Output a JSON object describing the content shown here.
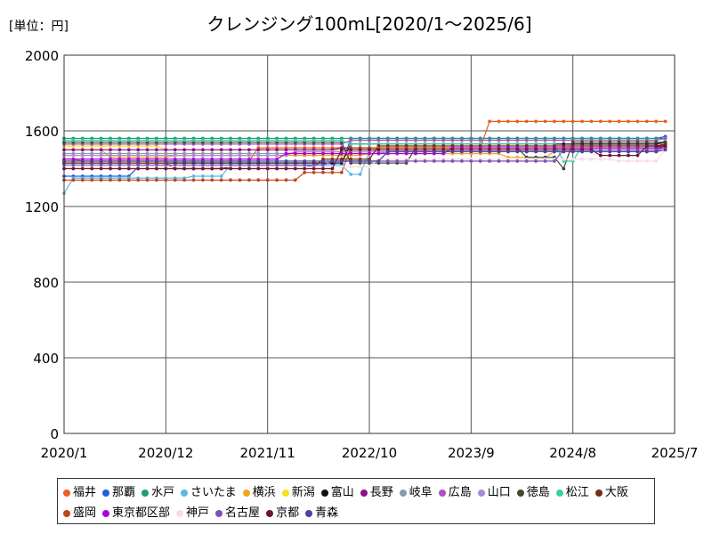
{
  "chart_data": {
    "type": "line",
    "title": "クレンジング100mL[2020/1～2025/6]",
    "unit_label": "[単位：円]",
    "xlabel": "",
    "ylabel": "",
    "ylim": [
      0,
      2000
    ],
    "y_ticks": [
      0,
      400,
      800,
      1200,
      1600,
      2000
    ],
    "x_ticks": [
      "2020/1",
      "2020/12",
      "2021/11",
      "2022/10",
      "2023/9",
      "2024/8",
      "2025/7"
    ],
    "x_tick_index": [
      0,
      11,
      22,
      33,
      44,
      55,
      66
    ],
    "grid": true,
    "legend_position": "bottom",
    "series": [
      {
        "name": "福井",
        "color": "#e8601c",
        "steps": [
          [
            0,
            1450
          ],
          [
            2,
            1440
          ],
          [
            16,
            1440
          ],
          [
            21,
            1510
          ],
          [
            46,
            1650
          ],
          [
            65,
            1650
          ]
        ]
      },
      {
        "name": "那覇",
        "color": "#1f5fd9",
        "steps": [
          [
            0,
            1360
          ],
          [
            8,
            1410
          ],
          [
            27,
            1420
          ],
          [
            31,
            1560
          ],
          [
            65,
            1570
          ]
        ]
      },
      {
        "name": "水戸",
        "color": "#1a9e77",
        "steps": [
          [
            0,
            1560
          ],
          [
            27,
            1560
          ],
          [
            65,
            1560
          ]
        ]
      },
      {
        "name": "さいたま",
        "color": "#5bb8e6",
        "steps": [
          [
            0,
            1270
          ],
          [
            1,
            1350
          ],
          [
            14,
            1360
          ],
          [
            18,
            1420
          ],
          [
            31,
            1370
          ],
          [
            33,
            1490
          ],
          [
            65,
            1560
          ]
        ]
      },
      {
        "name": "横浜",
        "color": "#f2a51a",
        "steps": [
          [
            0,
            1500
          ],
          [
            5,
            1460
          ],
          [
            12,
            1470
          ],
          [
            33,
            1480
          ],
          [
            48,
            1460
          ],
          [
            53,
            1490
          ],
          [
            65,
            1530
          ]
        ]
      },
      {
        "name": "新潟",
        "color": "#f2e31a",
        "steps": [
          [
            0,
            1520
          ],
          [
            11,
            1500
          ],
          [
            31,
            1500
          ],
          [
            55,
            1530
          ],
          [
            65,
            1540
          ]
        ]
      },
      {
        "name": "富山",
        "color": "#111111",
        "steps": [
          [
            0,
            1430
          ],
          [
            27,
            1430
          ],
          [
            31,
            1530
          ],
          [
            65,
            1540
          ]
        ]
      },
      {
        "name": "長野",
        "color": "#8e0e8e",
        "steps": [
          [
            0,
            1500
          ],
          [
            30,
            1510
          ],
          [
            65,
            1530
          ]
        ]
      },
      {
        "name": "岐阜",
        "color": "#8c9aa6",
        "steps": [
          [
            0,
            1480
          ],
          [
            35,
            1490
          ],
          [
            65,
            1520
          ]
        ]
      },
      {
        "name": "広島",
        "color": "#b04fc4",
        "steps": [
          [
            0,
            1530
          ],
          [
            31,
            1550
          ],
          [
            65,
            1560
          ]
        ]
      },
      {
        "name": "山口",
        "color": "#a78bd8",
        "steps": [
          [
            0,
            1470
          ],
          [
            25,
            1490
          ],
          [
            65,
            1520
          ]
        ]
      },
      {
        "name": "徳島",
        "color": "#3d4a34",
        "steps": [
          [
            0,
            1540
          ],
          [
            31,
            1430
          ],
          [
            38,
            1510
          ],
          [
            50,
            1460
          ],
          [
            54,
            1400
          ],
          [
            55,
            1540
          ],
          [
            65,
            1540
          ]
        ]
      },
      {
        "name": "松江",
        "color": "#3dcf9c",
        "steps": [
          [
            0,
            1550
          ],
          [
            31,
            1530
          ],
          [
            54,
            1440
          ],
          [
            56,
            1520
          ],
          [
            65,
            1530
          ]
        ]
      },
      {
        "name": "大阪",
        "color": "#7a2b10",
        "steps": [
          [
            0,
            1430
          ],
          [
            12,
            1400
          ],
          [
            18,
            1410
          ],
          [
            28,
            1450
          ],
          [
            34,
            1520
          ],
          [
            65,
            1530
          ]
        ]
      },
      {
        "name": "盛岡",
        "color": "#c1441b",
        "steps": [
          [
            0,
            1340
          ],
          [
            26,
            1380
          ],
          [
            31,
            1510
          ],
          [
            65,
            1520
          ]
        ]
      },
      {
        "name": "東京都区部",
        "color": "#b000d6",
        "steps": [
          [
            0,
            1450
          ],
          [
            16,
            1450
          ],
          [
            24,
            1480
          ],
          [
            42,
            1510
          ],
          [
            65,
            1510
          ]
        ]
      },
      {
        "name": "神戸",
        "color": "#f5dde8",
        "steps": [
          [
            0,
            1410
          ],
          [
            34,
            1450
          ],
          [
            60,
            1440
          ],
          [
            65,
            1500
          ]
        ]
      },
      {
        "name": "名古屋",
        "color": "#7a52b3",
        "steps": [
          [
            0,
            1420
          ],
          [
            29,
            1440
          ],
          [
            54,
            1500
          ],
          [
            65,
            1510
          ]
        ]
      },
      {
        "name": "京都",
        "color": "#6b1535",
        "steps": [
          [
            0,
            1400
          ],
          [
            30,
            1500
          ],
          [
            58,
            1470
          ],
          [
            63,
            1520
          ],
          [
            65,
            1520
          ]
        ]
      },
      {
        "name": "青森",
        "color": "#5040a0",
        "steps": [
          [
            0,
            1440
          ],
          [
            35,
            1490
          ],
          [
            65,
            1500
          ]
        ]
      }
    ]
  }
}
